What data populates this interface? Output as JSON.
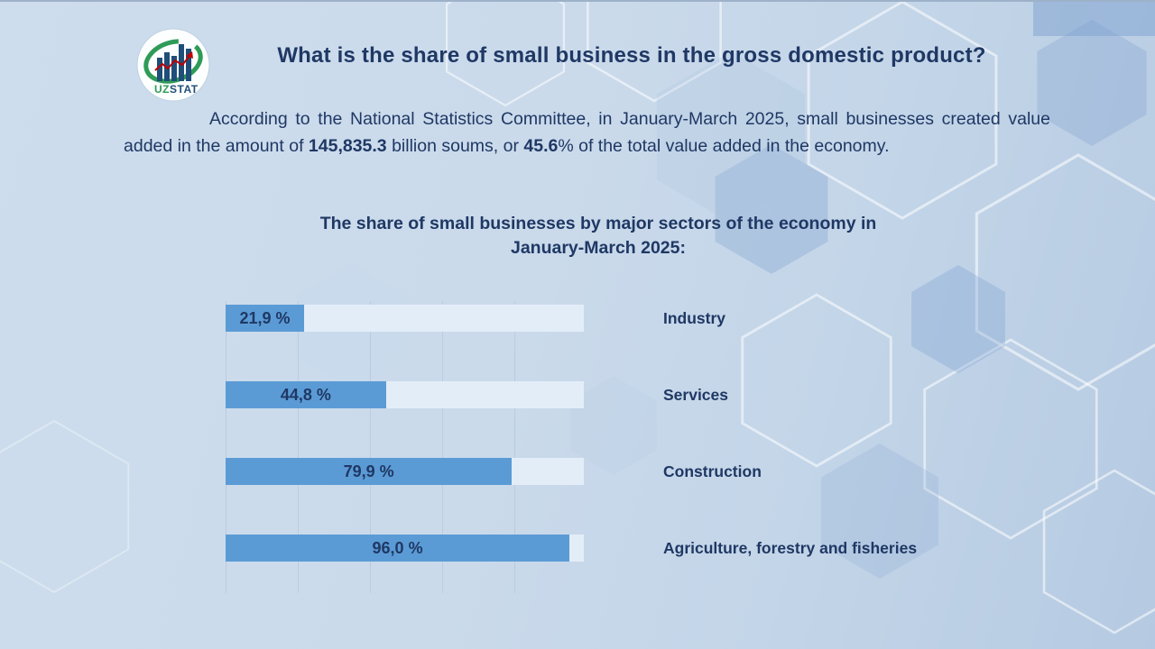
{
  "page": {
    "title": "What is the share of small business in the gross domestic product?",
    "logo": {
      "text_uz": "UZ",
      "text_stat": "STAT"
    },
    "intro": {
      "part1": "According to the National Statistics Committee, in January-March 2025, small businesses created value added in the amount of ",
      "bold1": "145,835.3",
      "part2": " billion soums, or ",
      "bold2": "45.6",
      "part3": "% of the total value added in the economy."
    }
  },
  "chart_data": {
    "type": "bar",
    "orientation": "horizontal",
    "title": "The share of small businesses by major sectors of the economy in\nJanuary-March 2025:",
    "categories": [
      "Industry",
      "Services",
      "Construction",
      "Agriculture, forestry and fisheries"
    ],
    "values": [
      21.9,
      44.8,
      79.9,
      96.0
    ],
    "value_labels": [
      "21,9 %",
      "44,8 %",
      "79,9 %",
      "96,0 %"
    ],
    "xlim": [
      0,
      100
    ],
    "gridlines": true,
    "legend": "none",
    "colors": {
      "bar": "#5B9BD5",
      "track": "#E3EDF8",
      "text": "#1F3864",
      "background": "#C9D9EA"
    }
  }
}
